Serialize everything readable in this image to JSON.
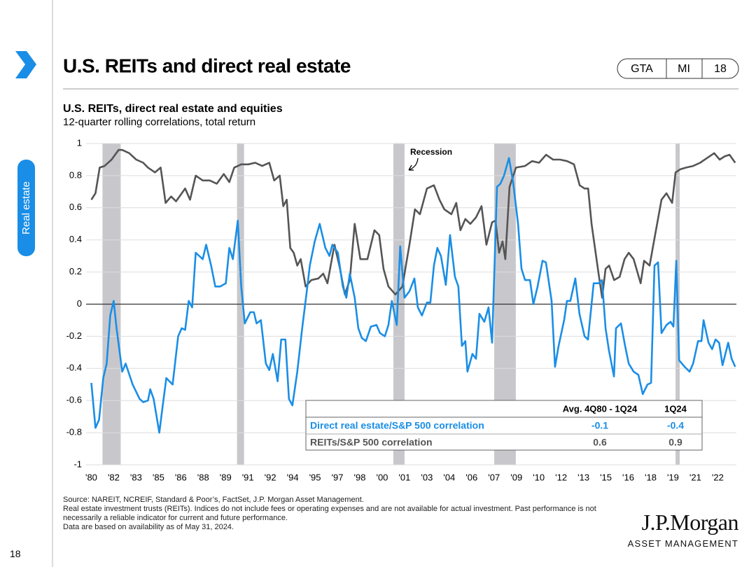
{
  "header": {
    "title": "U.S. REITs and direct real estate",
    "tags": [
      "GTA",
      "MI",
      "18"
    ]
  },
  "sidebar": {
    "section": "Real estate",
    "page": "18"
  },
  "chart_data": {
    "type": "line",
    "title": "U.S. REITs, direct real estate and equities",
    "subtitle": "12-quarter rolling correlations, total return",
    "annotation": "Recession",
    "recessions": [
      [
        1981.5,
        1982.72
      ],
      [
        1990.52,
        1990.99
      ],
      [
        2001.0,
        2001.75
      ],
      [
        2007.76,
        2009.21
      ],
      [
        2019.92,
        2020.2
      ]
    ],
    "recession_color": "#c8c8cc",
    "xlim": [
      1980.4,
      2024.0
    ],
    "xticks": [
      {
        "value": 1980.75,
        "label": "'80"
      },
      {
        "value": 1982.25,
        "label": "'82"
      },
      {
        "value": 1983.75,
        "label": "'83"
      },
      {
        "value": 1985.25,
        "label": "'85"
      },
      {
        "value": 1986.75,
        "label": "'86"
      },
      {
        "value": 1988.25,
        "label": "'88"
      },
      {
        "value": 1989.75,
        "label": "'89"
      },
      {
        "value": 1991.25,
        "label": "'91"
      },
      {
        "value": 1992.75,
        "label": "'92"
      },
      {
        "value": 1994.25,
        "label": "'94"
      },
      {
        "value": 1995.75,
        "label": "'95"
      },
      {
        "value": 1997.25,
        "label": "'97"
      },
      {
        "value": 1998.75,
        "label": "'98"
      },
      {
        "value": 2000.25,
        "label": "'00"
      },
      {
        "value": 2001.75,
        "label": "'01"
      },
      {
        "value": 2003.25,
        "label": "'03"
      },
      {
        "value": 2004.75,
        "label": "'04"
      },
      {
        "value": 2006.25,
        "label": "'06"
      },
      {
        "value": 2007.75,
        "label": "'07"
      },
      {
        "value": 2009.25,
        "label": "'09"
      },
      {
        "value": 2010.75,
        "label": "'10"
      },
      {
        "value": 2012.25,
        "label": "'12"
      },
      {
        "value": 2013.75,
        "label": "'13"
      },
      {
        "value": 2015.25,
        "label": "'15"
      },
      {
        "value": 2016.75,
        "label": "'16"
      },
      {
        "value": 2018.25,
        "label": "'18"
      },
      {
        "value": 2019.75,
        "label": "'19"
      },
      {
        "value": 2021.25,
        "label": "'21"
      },
      {
        "value": 2022.75,
        "label": "'22"
      }
    ],
    "ylim": [
      -1,
      1
    ],
    "yticks": [
      1,
      0.8,
      0.6,
      0.4,
      0.2,
      0,
      -0.2,
      -0.4,
      -0.6,
      -0.8,
      -1
    ],
    "grid": true,
    "series": [
      {
        "name": "REITs/S&P 500 correlation",
        "color": "#555555",
        "x": [
          1980.75,
          1981.03,
          1981.31,
          1981.64,
          1982.11,
          1982.58,
          1982.82,
          1983.29,
          1983.76,
          1984.23,
          1984.55,
          1985.02,
          1985.4,
          1985.73,
          1986.1,
          1986.43,
          1987.04,
          1987.37,
          1987.75,
          1988.22,
          1988.69,
          1989.16,
          1989.63,
          1990.0,
          1990.33,
          1990.8,
          1991.27,
          1991.74,
          1992.21,
          1992.68,
          1993.01,
          1993.38,
          1993.62,
          1993.85,
          1994.09,
          1994.32,
          1994.56,
          1994.79,
          1995.12,
          1995.5,
          1995.97,
          1996.3,
          1996.58,
          1997.05,
          1997.38,
          1997.75,
          1998.08,
          1998.41,
          1998.79,
          1999.26,
          1999.73,
          2000.05,
          2000.34,
          2000.67,
          2001.14,
          2001.61,
          2001.84,
          2002.08,
          2002.45,
          2002.78,
          2003.25,
          2003.72,
          2004.09,
          2004.42,
          2004.89,
          2005.22,
          2005.5,
          2005.83,
          2006.16,
          2006.54,
          2006.91,
          2007.24,
          2007.62,
          2007.85,
          2008.09,
          2008.32,
          2008.51,
          2008.79,
          2009.22,
          2009.83,
          2010.3,
          2010.77,
          2011.24,
          2011.71,
          2012.18,
          2012.65,
          2013.11,
          2013.49,
          2013.82,
          2014.06,
          2014.29,
          2014.76,
          2015.0,
          2015.23,
          2015.47,
          2015.8,
          2016.17,
          2016.5,
          2016.78,
          2017.11,
          2017.58,
          2017.81,
          2018.18,
          2018.51,
          2018.98,
          2019.31,
          2019.69,
          2019.92,
          2020.25,
          2020.63,
          2021.1,
          2021.57,
          2022.04,
          2022.51,
          2022.88,
          2023.21,
          2023.54,
          2023.92
        ],
        "values": [
          0.65,
          0.69,
          0.85,
          0.86,
          0.9,
          0.96,
          0.96,
          0.94,
          0.9,
          0.88,
          0.85,
          0.82,
          0.85,
          0.63,
          0.67,
          0.64,
          0.72,
          0.65,
          0.8,
          0.77,
          0.77,
          0.75,
          0.81,
          0.76,
          0.85,
          0.87,
          0.87,
          0.88,
          0.86,
          0.88,
          0.77,
          0.8,
          0.61,
          0.65,
          0.35,
          0.32,
          0.24,
          0.28,
          0.11,
          0.15,
          0.16,
          0.19,
          0.13,
          0.37,
          0.24,
          0.06,
          0.15,
          0.5,
          0.28,
          0.28,
          0.46,
          0.43,
          0.22,
          0.11,
          0.06,
          0.11,
          0.24,
          0.37,
          0.59,
          0.56,
          0.72,
          0.74,
          0.65,
          0.59,
          0.56,
          0.63,
          0.46,
          0.53,
          0.5,
          0.54,
          0.61,
          0.37,
          0.51,
          0.52,
          0.32,
          0.39,
          0.28,
          0.73,
          0.85,
          0.86,
          0.89,
          0.88,
          0.93,
          0.9,
          0.9,
          0.89,
          0.87,
          0.74,
          0.72,
          0.72,
          0.5,
          0.19,
          0.04,
          0.22,
          0.24,
          0.15,
          0.17,
          0.28,
          0.32,
          0.28,
          0.13,
          0.27,
          0.24,
          0.41,
          0.65,
          0.69,
          0.63,
          0.82,
          0.84,
          0.85,
          0.86,
          0.88,
          0.91,
          0.94,
          0.9,
          0.92,
          0.93,
          0.88
        ]
      },
      {
        "name": "Direct real estate/S&P 500 correlation",
        "color": "#1a8ee6",
        "x": [
          1980.75,
          1981.03,
          1981.27,
          1981.55,
          1981.78,
          1982.02,
          1982.25,
          1982.44,
          1982.82,
          1983.05,
          1983.52,
          1983.99,
          1984.23,
          1984.55,
          1984.7,
          1984.93,
          1985.31,
          1985.54,
          1985.78,
          1986.2,
          1986.57,
          1986.81,
          1987.04,
          1987.28,
          1987.51,
          1987.75,
          1988.22,
          1988.45,
          1988.78,
          1989.06,
          1989.39,
          1989.77,
          1990.0,
          1990.24,
          1990.57,
          1990.8,
          1991.04,
          1991.41,
          1991.65,
          1991.83,
          1992.12,
          1992.45,
          1992.68,
          1992.92,
          1993.24,
          1993.48,
          1993.76,
          1994.0,
          1994.23,
          1994.56,
          1994.89,
          1995.17,
          1995.4,
          1995.73,
          1996.06,
          1996.44,
          1996.72,
          1996.91,
          1997.28,
          1997.61,
          1997.85,
          1998.08,
          1998.41,
          1998.65,
          1998.88,
          1999.16,
          1999.49,
          1999.87,
          2000.1,
          2000.43,
          2000.67,
          2000.9,
          2001.23,
          2001.46,
          2001.75,
          2002.08,
          2002.41,
          2002.64,
          2002.92,
          2003.25,
          2003.48,
          2003.72,
          2003.95,
          2004.19,
          2004.52,
          2004.8,
          2005.13,
          2005.36,
          2005.6,
          2005.83,
          2005.97,
          2006.3,
          2006.54,
          2006.77,
          2007.1,
          2007.38,
          2007.62,
          2007.95,
          2008.18,
          2008.42,
          2008.75,
          2009.03,
          2009.36,
          2009.59,
          2009.83,
          2010.16,
          2010.39,
          2010.67,
          2011.0,
          2011.23,
          2011.61,
          2011.84,
          2012.08,
          2012.45,
          2012.64,
          2012.87,
          2013.2,
          2013.48,
          2013.82,
          2014.05,
          2014.43,
          2014.76,
          2014.99,
          2015.23,
          2015.46,
          2015.79,
          2015.93,
          2016.26,
          2016.54,
          2016.78,
          2017.11,
          2017.43,
          2017.72,
          2018.04,
          2018.28,
          2018.51,
          2018.75,
          2018.98,
          2019.31,
          2019.59,
          2019.78,
          2019.97,
          2020.16,
          2020.53,
          2020.86,
          2021.1,
          2021.43,
          2021.66,
          2021.8,
          2022.13,
          2022.37,
          2022.6,
          2022.84,
          2023.07,
          2023.45,
          2023.68,
          2023.92
        ],
        "values": [
          -0.49,
          -0.77,
          -0.72,
          -0.46,
          -0.37,
          -0.07,
          0.02,
          -0.15,
          -0.42,
          -0.37,
          -0.5,
          -0.59,
          -0.61,
          -0.6,
          -0.53,
          -0.59,
          -0.8,
          -0.63,
          -0.46,
          -0.5,
          -0.2,
          -0.15,
          -0.16,
          0.02,
          -0.02,
          0.32,
          0.28,
          0.37,
          0.24,
          0.11,
          0.11,
          0.13,
          0.35,
          0.28,
          0.52,
          0.11,
          -0.12,
          -0.05,
          -0.05,
          -0.12,
          -0.1,
          -0.37,
          -0.41,
          -0.31,
          -0.48,
          -0.22,
          -0.22,
          -0.59,
          -0.63,
          -0.42,
          -0.15,
          0.06,
          0.24,
          0.39,
          0.5,
          0.35,
          0.3,
          0.37,
          0.32,
          0.11,
          0.04,
          0.19,
          0.04,
          -0.15,
          -0.21,
          -0.23,
          -0.14,
          -0.13,
          -0.18,
          -0.2,
          -0.13,
          0.02,
          -0.13,
          0.36,
          0.04,
          0.08,
          0.16,
          -0.02,
          -0.07,
          0.01,
          0.01,
          0.24,
          0.35,
          0.3,
          0.12,
          0.43,
          0.17,
          0.11,
          -0.26,
          -0.23,
          -0.42,
          -0.31,
          -0.34,
          -0.06,
          -0.11,
          -0.02,
          -0.24,
          0.73,
          0.75,
          0.8,
          0.91,
          0.76,
          0.5,
          0.22,
          0.15,
          0.15,
          0.0,
          0.11,
          0.27,
          0.26,
          0.02,
          -0.39,
          -0.26,
          -0.1,
          0.02,
          0.02,
          0.16,
          -0.06,
          -0.2,
          -0.22,
          0.13,
          0.13,
          0.15,
          -0.15,
          -0.29,
          -0.45,
          -0.15,
          -0.12,
          -0.26,
          -0.37,
          -0.42,
          -0.44,
          -0.56,
          -0.5,
          -0.49,
          0.24,
          0.26,
          -0.18,
          -0.13,
          -0.11,
          -0.14,
          0.27,
          -0.35,
          -0.39,
          -0.42,
          -0.37,
          -0.23,
          -0.23,
          -0.1,
          -0.24,
          -0.28,
          -0.22,
          -0.24,
          -0.38,
          -0.24,
          -0.34,
          -0.39
        ]
      }
    ],
    "table": {
      "columns": [
        "Avg. 4Q80 - 1Q24",
        "1Q24"
      ],
      "rows": [
        {
          "label": "Direct real estate/S&P 500 correlation",
          "values": [
            -0.1,
            -0.4
          ]
        },
        {
          "label": "REITs/S&P 500 correlation",
          "values": [
            0.6,
            0.9
          ]
        }
      ]
    }
  },
  "footer": {
    "notes": [
      "Source: NAREIT, NCREIF, Standard & Poor’s, FactSet, J.P. Morgan Asset Management.",
      "Real estate investment trusts (REITs). Indices do not include fees or operating expenses and are not available for actual investment. Past performance is not necessarily a reliable indicator for current and future performance.",
      "Data are based on availability as of May 31, 2024."
    ],
    "logo": "J.P.Morgan",
    "logo_sub": "ASSET MANAGEMENT"
  }
}
